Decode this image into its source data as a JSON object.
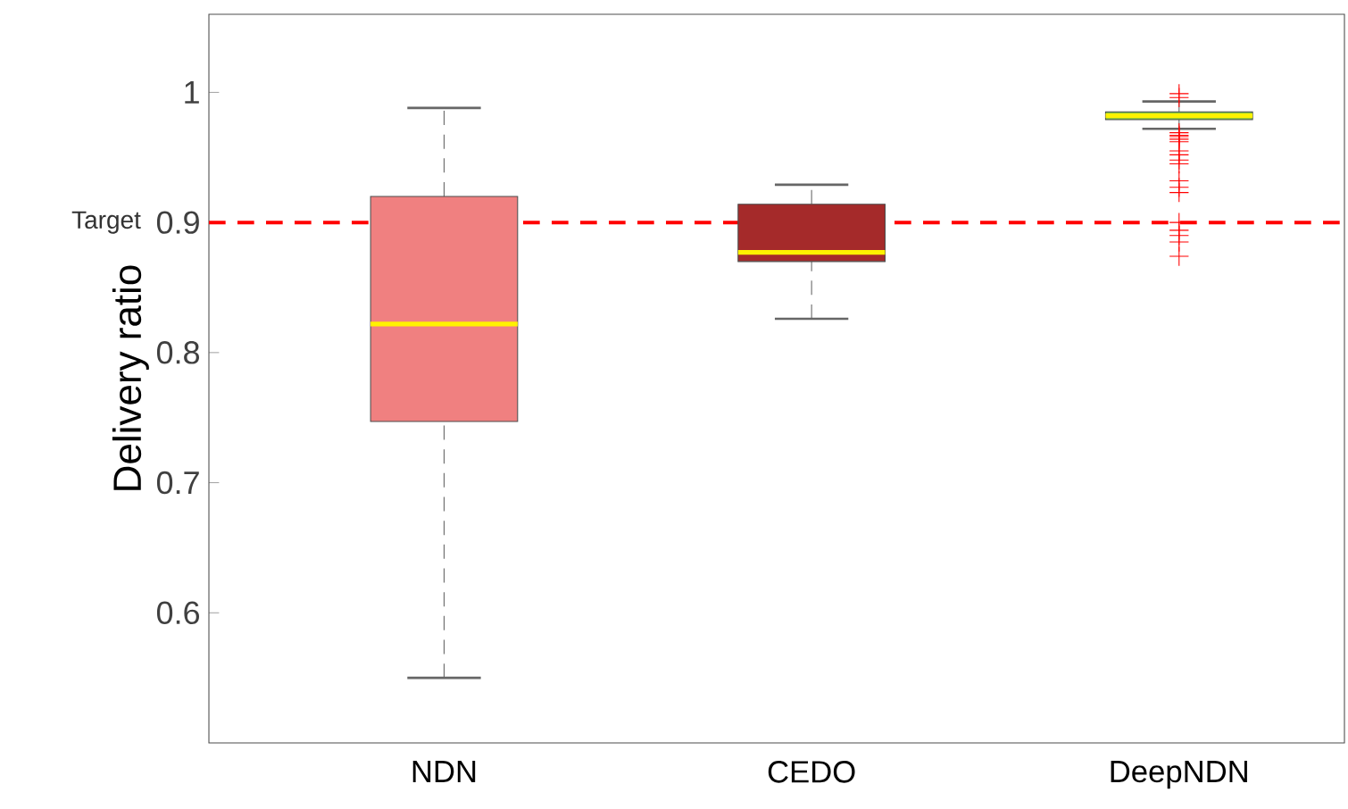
{
  "chart_data": {
    "type": "box",
    "ylabel": "Delivery ratio",
    "categories": [
      "NDN",
      "CEDO",
      "DeepNDN"
    ],
    "colors": [
      "#f08080",
      "#a52a2a",
      "#7ac143"
    ],
    "boxes": [
      {
        "low": 0.55,
        "q1": 0.747,
        "median": 0.822,
        "q3": 0.92,
        "high": 0.988
      },
      {
        "low": 0.826,
        "q1": 0.87,
        "median": 0.877,
        "q3": 0.914,
        "high": 0.929
      },
      {
        "low": 0.972,
        "q1": 0.979,
        "median": 0.982,
        "q3": 0.985,
        "high": 0.993,
        "outliers": [
          0.999,
          0.996,
          0.969,
          0.967,
          0.966,
          0.964,
          0.962,
          0.955,
          0.952,
          0.948,
          0.945,
          0.932,
          0.927,
          0.923,
          0.9,
          0.894,
          0.89,
          0.885,
          0.874
        ]
      }
    ],
    "ylim": [
      0.5,
      1.06
    ],
    "yticks": [
      0.6,
      0.7,
      0.8,
      0.9,
      1
    ],
    "ref_lines": [
      {
        "axis": "y",
        "value": 0.9,
        "label": "Target",
        "color": "#ff0000",
        "line_style": "dashed"
      }
    ]
  }
}
